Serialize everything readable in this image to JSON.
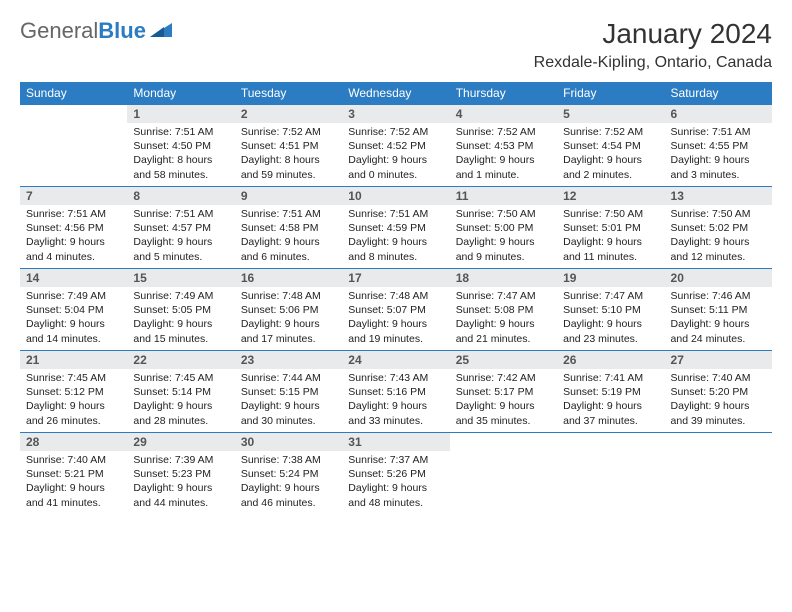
{
  "brand": {
    "part1": "General",
    "part2": "Blue"
  },
  "title": "January 2024",
  "location": "Rexdale-Kipling, Ontario, Canada",
  "colors": {
    "header_bg": "#2b7cc2",
    "daynum_bg": "#e8eaec"
  },
  "weekdays": [
    "Sunday",
    "Monday",
    "Tuesday",
    "Wednesday",
    "Thursday",
    "Friday",
    "Saturday"
  ],
  "weeks": [
    [
      null,
      {
        "n": "1",
        "sr": "7:51 AM",
        "ss": "4:50 PM",
        "dl": "8 hours and 58 minutes."
      },
      {
        "n": "2",
        "sr": "7:52 AM",
        "ss": "4:51 PM",
        "dl": "8 hours and 59 minutes."
      },
      {
        "n": "3",
        "sr": "7:52 AM",
        "ss": "4:52 PM",
        "dl": "9 hours and 0 minutes."
      },
      {
        "n": "4",
        "sr": "7:52 AM",
        "ss": "4:53 PM",
        "dl": "9 hours and 1 minute."
      },
      {
        "n": "5",
        "sr": "7:52 AM",
        "ss": "4:54 PM",
        "dl": "9 hours and 2 minutes."
      },
      {
        "n": "6",
        "sr": "7:51 AM",
        "ss": "4:55 PM",
        "dl": "9 hours and 3 minutes."
      }
    ],
    [
      {
        "n": "7",
        "sr": "7:51 AM",
        "ss": "4:56 PM",
        "dl": "9 hours and 4 minutes."
      },
      {
        "n": "8",
        "sr": "7:51 AM",
        "ss": "4:57 PM",
        "dl": "9 hours and 5 minutes."
      },
      {
        "n": "9",
        "sr": "7:51 AM",
        "ss": "4:58 PM",
        "dl": "9 hours and 6 minutes."
      },
      {
        "n": "10",
        "sr": "7:51 AM",
        "ss": "4:59 PM",
        "dl": "9 hours and 8 minutes."
      },
      {
        "n": "11",
        "sr": "7:50 AM",
        "ss": "5:00 PM",
        "dl": "9 hours and 9 minutes."
      },
      {
        "n": "12",
        "sr": "7:50 AM",
        "ss": "5:01 PM",
        "dl": "9 hours and 11 minutes."
      },
      {
        "n": "13",
        "sr": "7:50 AM",
        "ss": "5:02 PM",
        "dl": "9 hours and 12 minutes."
      }
    ],
    [
      {
        "n": "14",
        "sr": "7:49 AM",
        "ss": "5:04 PM",
        "dl": "9 hours and 14 minutes."
      },
      {
        "n": "15",
        "sr": "7:49 AM",
        "ss": "5:05 PM",
        "dl": "9 hours and 15 minutes."
      },
      {
        "n": "16",
        "sr": "7:48 AM",
        "ss": "5:06 PM",
        "dl": "9 hours and 17 minutes."
      },
      {
        "n": "17",
        "sr": "7:48 AM",
        "ss": "5:07 PM",
        "dl": "9 hours and 19 minutes."
      },
      {
        "n": "18",
        "sr": "7:47 AM",
        "ss": "5:08 PM",
        "dl": "9 hours and 21 minutes."
      },
      {
        "n": "19",
        "sr": "7:47 AM",
        "ss": "5:10 PM",
        "dl": "9 hours and 23 minutes."
      },
      {
        "n": "20",
        "sr": "7:46 AM",
        "ss": "5:11 PM",
        "dl": "9 hours and 24 minutes."
      }
    ],
    [
      {
        "n": "21",
        "sr": "7:45 AM",
        "ss": "5:12 PM",
        "dl": "9 hours and 26 minutes."
      },
      {
        "n": "22",
        "sr": "7:45 AM",
        "ss": "5:14 PM",
        "dl": "9 hours and 28 minutes."
      },
      {
        "n": "23",
        "sr": "7:44 AM",
        "ss": "5:15 PM",
        "dl": "9 hours and 30 minutes."
      },
      {
        "n": "24",
        "sr": "7:43 AM",
        "ss": "5:16 PM",
        "dl": "9 hours and 33 minutes."
      },
      {
        "n": "25",
        "sr": "7:42 AM",
        "ss": "5:17 PM",
        "dl": "9 hours and 35 minutes."
      },
      {
        "n": "26",
        "sr": "7:41 AM",
        "ss": "5:19 PM",
        "dl": "9 hours and 37 minutes."
      },
      {
        "n": "27",
        "sr": "7:40 AM",
        "ss": "5:20 PM",
        "dl": "9 hours and 39 minutes."
      }
    ],
    [
      {
        "n": "28",
        "sr": "7:40 AM",
        "ss": "5:21 PM",
        "dl": "9 hours and 41 minutes."
      },
      {
        "n": "29",
        "sr": "7:39 AM",
        "ss": "5:23 PM",
        "dl": "9 hours and 44 minutes."
      },
      {
        "n": "30",
        "sr": "7:38 AM",
        "ss": "5:24 PM",
        "dl": "9 hours and 46 minutes."
      },
      {
        "n": "31",
        "sr": "7:37 AM",
        "ss": "5:26 PM",
        "dl": "9 hours and 48 minutes."
      },
      null,
      null,
      null
    ]
  ],
  "labels": {
    "sunrise": "Sunrise:",
    "sunset": "Sunset:",
    "daylight": "Daylight:"
  }
}
